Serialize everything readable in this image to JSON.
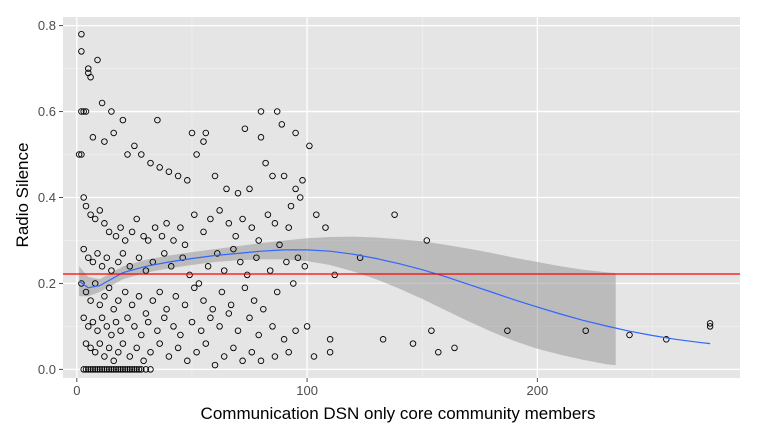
{
  "colors": {
    "panel_background": "#e5e5e5",
    "grid_major": "#ffffff",
    "grid_minor": "#f2f2f2",
    "point_stroke": "#000000",
    "smooth_line": "#3366ff",
    "confidence_band": "#999999",
    "reference_line": "#ff0000",
    "tick_text": "#4d4d4d"
  },
  "chart_data": {
    "type": "scatter",
    "xlabel": "Communication DSN only core community members",
    "ylabel": "Radio Silence",
    "xlim": [
      -6,
      288
    ],
    "ylim": [
      -0.02,
      0.82
    ],
    "x_ticks": [
      0,
      100,
      200
    ],
    "x_tick_labels": [
      "0",
      "100",
      "200"
    ],
    "y_ticks": [
      0.0,
      0.2,
      0.4,
      0.6,
      0.8
    ],
    "y_tick_labels": [
      "0.0",
      "0.2",
      "0.4",
      "0.6",
      "0.8"
    ],
    "grid": true,
    "legend": "none",
    "reference_line_y": 0.222,
    "smooth_curve": {
      "x": [
        1,
        5,
        10,
        20,
        30,
        40,
        50,
        60,
        70,
        80,
        90,
        100,
        110,
        120,
        130,
        140,
        150,
        160,
        170,
        180,
        190,
        200,
        210,
        220,
        230,
        240,
        250,
        260,
        270,
        275
      ],
      "y": [
        0.205,
        0.19,
        0.195,
        0.225,
        0.24,
        0.25,
        0.258,
        0.265,
        0.27,
        0.275,
        0.278,
        0.278,
        0.275,
        0.268,
        0.258,
        0.246,
        0.232,
        0.216,
        0.198,
        0.18,
        0.162,
        0.145,
        0.129,
        0.114,
        0.101,
        0.089,
        0.079,
        0.07,
        0.063,
        0.06
      ]
    },
    "confidence_band": {
      "x": [
        1,
        5,
        10,
        20,
        30,
        40,
        50,
        60,
        70,
        80,
        90,
        100,
        110,
        120,
        130,
        140,
        150,
        160,
        170,
        180,
        190,
        200,
        210,
        220,
        230,
        234
      ],
      "lower": [
        0.17,
        0.17,
        0.18,
        0.21,
        0.225,
        0.235,
        0.243,
        0.25,
        0.254,
        0.256,
        0.256,
        0.252,
        0.243,
        0.228,
        0.21,
        0.188,
        0.164,
        0.138,
        0.112,
        0.088,
        0.066,
        0.048,
        0.034,
        0.022,
        0.012,
        0.01
      ],
      "upper": [
        0.24,
        0.215,
        0.21,
        0.24,
        0.255,
        0.265,
        0.273,
        0.28,
        0.287,
        0.294,
        0.3,
        0.305,
        0.308,
        0.309,
        0.307,
        0.303,
        0.298,
        0.29,
        0.281,
        0.271,
        0.26,
        0.25,
        0.24,
        0.232,
        0.226,
        0.224
      ]
    },
    "points": [
      [
        1,
        0.5
      ],
      [
        2,
        0.5
      ],
      [
        2,
        0.6
      ],
      [
        3,
        0.6
      ],
      [
        4,
        0.6
      ],
      [
        2,
        0.74
      ],
      [
        2,
        0.78
      ],
      [
        5,
        0.7
      ],
      [
        6,
        0.68
      ],
      [
        5,
        0.69
      ],
      [
        9,
        0.72
      ],
      [
        11,
        0.62
      ],
      [
        15,
        0.6
      ],
      [
        20,
        0.58
      ],
      [
        35,
        0.58
      ],
      [
        50,
        0.55
      ],
      [
        55,
        0.53
      ],
      [
        56,
        0.55
      ],
      [
        80,
        0.6
      ],
      [
        87,
        0.6
      ],
      [
        80,
        0.54
      ],
      [
        89,
        0.57
      ],
      [
        95,
        0.55
      ],
      [
        101,
        0.52
      ],
      [
        73,
        0.56
      ],
      [
        7,
        0.54
      ],
      [
        12,
        0.53
      ],
      [
        16,
        0.55
      ],
      [
        22,
        0.5
      ],
      [
        25,
        0.52
      ],
      [
        28,
        0.5
      ],
      [
        32,
        0.48
      ],
      [
        36,
        0.47
      ],
      [
        40,
        0.46
      ],
      [
        44,
        0.45
      ],
      [
        48,
        0.44
      ],
      [
        52,
        0.5
      ],
      [
        60,
        0.45
      ],
      [
        65,
        0.42
      ],
      [
        70,
        0.41
      ],
      [
        75,
        0.42
      ],
      [
        82,
        0.48
      ],
      [
        85,
        0.45
      ],
      [
        90,
        0.45
      ],
      [
        95,
        0.42
      ],
      [
        98,
        0.44
      ],
      [
        93,
        0.38
      ],
      [
        97,
        0.4
      ],
      [
        104,
        0.36
      ],
      [
        108,
        0.33
      ],
      [
        3,
        0.4
      ],
      [
        4,
        0.38
      ],
      [
        6,
        0.36
      ],
      [
        8,
        0.35
      ],
      [
        10,
        0.37
      ],
      [
        12,
        0.34
      ],
      [
        14,
        0.32
      ],
      [
        17,
        0.31
      ],
      [
        19,
        0.33
      ],
      [
        21,
        0.3
      ],
      [
        24,
        0.32
      ],
      [
        26,
        0.35
      ],
      [
        29,
        0.31
      ],
      [
        31,
        0.3
      ],
      [
        34,
        0.33
      ],
      [
        37,
        0.31
      ],
      [
        39,
        0.34
      ],
      [
        42,
        0.3
      ],
      [
        45,
        0.33
      ],
      [
        47,
        0.29
      ],
      [
        51,
        0.36
      ],
      [
        55,
        0.32
      ],
      [
        58,
        0.35
      ],
      [
        62,
        0.37
      ],
      [
        66,
        0.34
      ],
      [
        69,
        0.31
      ],
      [
        72,
        0.35
      ],
      [
        76,
        0.33
      ],
      [
        79,
        0.3
      ],
      [
        83,
        0.36
      ],
      [
        86,
        0.34
      ],
      [
        88,
        0.29
      ],
      [
        92,
        0.33
      ],
      [
        96,
        0.26
      ],
      [
        99,
        0.24
      ],
      [
        112,
        0.22
      ],
      [
        123,
        0.26
      ],
      [
        138,
        0.36
      ],
      [
        152,
        0.3
      ],
      [
        3,
        0.28
      ],
      [
        5,
        0.26
      ],
      [
        7,
        0.25
      ],
      [
        9,
        0.27
      ],
      [
        11,
        0.24
      ],
      [
        13,
        0.26
      ],
      [
        15,
        0.23
      ],
      [
        18,
        0.25
      ],
      [
        20,
        0.27
      ],
      [
        23,
        0.24
      ],
      [
        27,
        0.26
      ],
      [
        30,
        0.23
      ],
      [
        33,
        0.25
      ],
      [
        38,
        0.27
      ],
      [
        41,
        0.24
      ],
      [
        46,
        0.26
      ],
      [
        49,
        0.22
      ],
      [
        53,
        0.2
      ],
      [
        57,
        0.24
      ],
      [
        61,
        0.27
      ],
      [
        64,
        0.23
      ],
      [
        68,
        0.28
      ],
      [
        71,
        0.25
      ],
      [
        74,
        0.22
      ],
      [
        78,
        0.26
      ],
      [
        84,
        0.23
      ],
      [
        91,
        0.25
      ],
      [
        94,
        0.2
      ],
      [
        2,
        0.2
      ],
      [
        4,
        0.18
      ],
      [
        6,
        0.16
      ],
      [
        8,
        0.2
      ],
      [
        10,
        0.15
      ],
      [
        12,
        0.17
      ],
      [
        14,
        0.19
      ],
      [
        16,
        0.14
      ],
      [
        18,
        0.16
      ],
      [
        21,
        0.18
      ],
      [
        24,
        0.15
      ],
      [
        27,
        0.17
      ],
      [
        30,
        0.13
      ],
      [
        33,
        0.16
      ],
      [
        36,
        0.18
      ],
      [
        39,
        0.14
      ],
      [
        43,
        0.17
      ],
      [
        47,
        0.15
      ],
      [
        51,
        0.19
      ],
      [
        55,
        0.16
      ],
      [
        59,
        0.14
      ],
      [
        63,
        0.18
      ],
      [
        67,
        0.15
      ],
      [
        73,
        0.19
      ],
      [
        77,
        0.16
      ],
      [
        81,
        0.14
      ],
      [
        87,
        0.18
      ],
      [
        3,
        0.12
      ],
      [
        5,
        0.1
      ],
      [
        7,
        0.11
      ],
      [
        9,
        0.09
      ],
      [
        11,
        0.12
      ],
      [
        13,
        0.1
      ],
      [
        15,
        0.08
      ],
      [
        17,
        0.11
      ],
      [
        19,
        0.09
      ],
      [
        22,
        0.12
      ],
      [
        25,
        0.1
      ],
      [
        28,
        0.08
      ],
      [
        31,
        0.11
      ],
      [
        35,
        0.09
      ],
      [
        38,
        0.12
      ],
      [
        42,
        0.1
      ],
      [
        45,
        0.08
      ],
      [
        50,
        0.11
      ],
      [
        54,
        0.09
      ],
      [
        58,
        0.12
      ],
      [
        62,
        0.1
      ],
      [
        66,
        0.13
      ],
      [
        70,
        0.09
      ],
      [
        75,
        0.12
      ],
      [
        79,
        0.08
      ],
      [
        85,
        0.1
      ],
      [
        90,
        0.07
      ],
      [
        95,
        0.09
      ],
      [
        100,
        0.1
      ],
      [
        4,
        0.06
      ],
      [
        6,
        0.05
      ],
      [
        8,
        0.04
      ],
      [
        10,
        0.06
      ],
      [
        12,
        0.03
      ],
      [
        14,
        0.05
      ],
      [
        16,
        0.02
      ],
      [
        18,
        0.04
      ],
      [
        20,
        0.06
      ],
      [
        23,
        0.03
      ],
      [
        26,
        0.05
      ],
      [
        29,
        0.02
      ],
      [
        32,
        0.04
      ],
      [
        36,
        0.06
      ],
      [
        40,
        0.03
      ],
      [
        44,
        0.05
      ],
      [
        48,
        0.02
      ],
      [
        52,
        0.04
      ],
      [
        56,
        0.06
      ],
      [
        60,
        0.01
      ],
      [
        64,
        0.03
      ],
      [
        68,
        0.05
      ],
      [
        72,
        0.02
      ],
      [
        76,
        0.04
      ],
      [
        80,
        0.02
      ],
      [
        86,
        0.03
      ],
      [
        92,
        0.04
      ],
      [
        103,
        0.03
      ],
      [
        110,
        0.04
      ],
      [
        3,
        0.0
      ],
      [
        4,
        0.0
      ],
      [
        5,
        0.0
      ],
      [
        6,
        0.0
      ],
      [
        7,
        0.0
      ],
      [
        8,
        0.0
      ],
      [
        9,
        0.0
      ],
      [
        10,
        0.0
      ],
      [
        11,
        0.0
      ],
      [
        12,
        0.0
      ],
      [
        13,
        0.0
      ],
      [
        14,
        0.0
      ],
      [
        15,
        0.0
      ],
      [
        16,
        0.0
      ],
      [
        17,
        0.0
      ],
      [
        18,
        0.0
      ],
      [
        19,
        0.0
      ],
      [
        20,
        0.0
      ],
      [
        21,
        0.0
      ],
      [
        22,
        0.0
      ],
      [
        23,
        0.0
      ],
      [
        24,
        0.0
      ],
      [
        25,
        0.0
      ],
      [
        26,
        0.0
      ],
      [
        27,
        0.0
      ],
      [
        28,
        0.0
      ],
      [
        30,
        0.0
      ],
      [
        32,
        0.0
      ],
      [
        110,
        0.07
      ],
      [
        133,
        0.07
      ],
      [
        146,
        0.06
      ],
      [
        154,
        0.09
      ],
      [
        157,
        0.04
      ],
      [
        164,
        0.05
      ],
      [
        187,
        0.09
      ],
      [
        221,
        0.09
      ],
      [
        240,
        0.08
      ],
      [
        256,
        0.07
      ],
      [
        275,
        0.1
      ],
      [
        275,
        0.107
      ]
    ]
  }
}
